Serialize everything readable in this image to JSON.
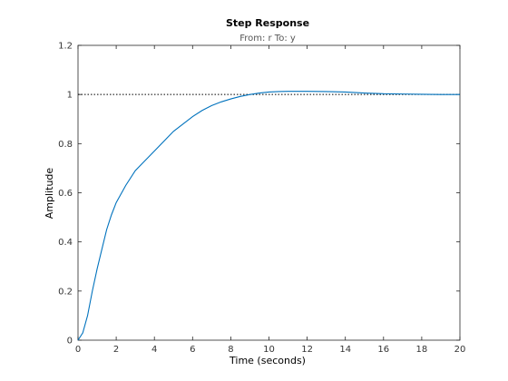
{
  "chart_data": {
    "type": "line",
    "title": "Step Response",
    "subtitle": "From: r  To: y",
    "xlabel": "Time (seconds)",
    "ylabel": "Amplitude",
    "xlim": [
      0,
      20
    ],
    "ylim": [
      0,
      1.2
    ],
    "xticks": [
      "0",
      "2",
      "4",
      "6",
      "8",
      "10",
      "12",
      "14",
      "16",
      "18",
      "20"
    ],
    "yticks": [
      "0",
      "0.2",
      "0.4",
      "0.6",
      "0.8",
      "1",
      "1.2"
    ],
    "grid": false,
    "reference_line": {
      "y": 1,
      "style": "dotted"
    },
    "series": [
      {
        "color": "#0072BD",
        "x": [
          0,
          0.25,
          0.5,
          0.75,
          1.0,
          1.25,
          1.5,
          1.75,
          2.0,
          2.5,
          3.0,
          3.5,
          4.0,
          4.5,
          5.0,
          5.5,
          6.0,
          6.5,
          7.0,
          7.5,
          8.0,
          8.5,
          9.0,
          9.5,
          10.0,
          10.5,
          11.0,
          12.0,
          13.0,
          14.0,
          15.0,
          16.0,
          17.0,
          18.0,
          19.0,
          20.0
        ],
        "y": [
          0,
          0.03,
          0.1,
          0.2,
          0.29,
          0.37,
          0.45,
          0.51,
          0.56,
          0.63,
          0.69,
          0.73,
          0.77,
          0.81,
          0.85,
          0.88,
          0.91,
          0.935,
          0.955,
          0.97,
          0.982,
          0.992,
          1.0,
          1.006,
          1.01,
          1.012,
          1.013,
          1.013,
          1.012,
          1.01,
          1.006,
          1.003,
          1.002,
          1.001,
          1.0,
          1.0
        ]
      }
    ]
  }
}
